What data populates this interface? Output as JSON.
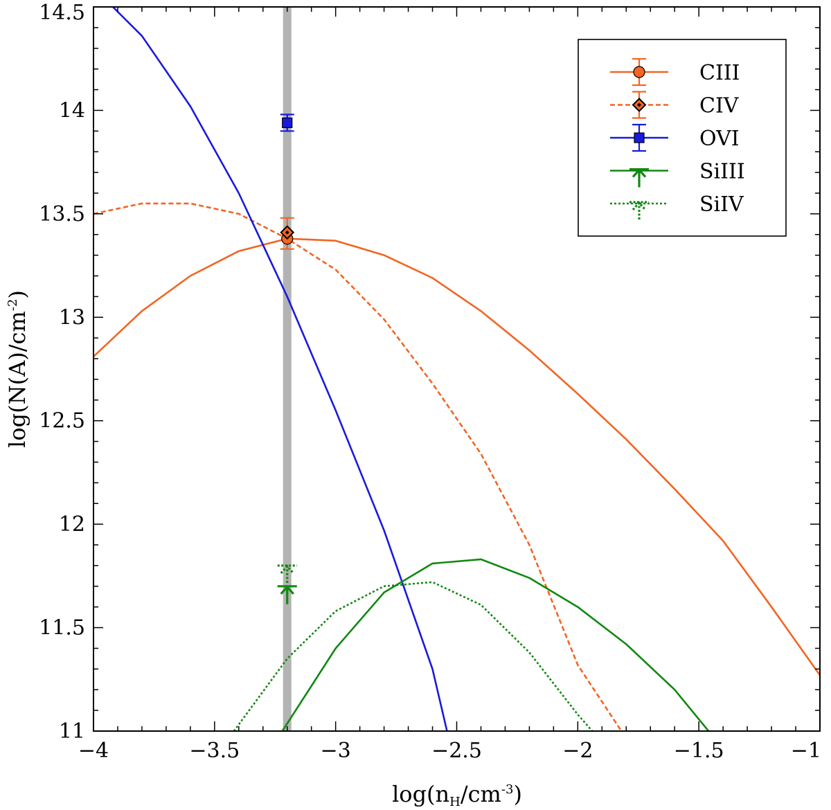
{
  "chart_data": {
    "type": "line",
    "title": "",
    "xlabel": "log(n_H/cm^-3)",
    "ylabel": "log(N(A)/cm^-2)",
    "xlim": [
      -4,
      -1
    ],
    "ylim": [
      11,
      14.5
    ],
    "grid": false,
    "legend_position": "top-right",
    "x_ticks": [
      {
        "value": -4,
        "label": "−4"
      },
      {
        "value": -3.5,
        "label": "−3.5"
      },
      {
        "value": -3,
        "label": "−3"
      },
      {
        "value": -2.5,
        "label": "−2.5"
      },
      {
        "value": -2,
        "label": "−2"
      },
      {
        "value": -1.5,
        "label": "−1.5"
      },
      {
        "value": -1,
        "label": "−1"
      }
    ],
    "y_ticks": [
      {
        "value": 11,
        "label": "11"
      },
      {
        "value": 11.5,
        "label": "11.5"
      },
      {
        "value": 12,
        "label": "12"
      },
      {
        "value": 12.5,
        "label": "12.5"
      },
      {
        "value": 13,
        "label": "13"
      },
      {
        "value": 13.5,
        "label": "13.5"
      },
      {
        "value": 14,
        "label": "14"
      },
      {
        "value": 14.5,
        "label": "14.5"
      }
    ],
    "best_fit_density": -3.2,
    "series": [
      {
        "name": "CIII",
        "color": "#f26522",
        "dash": "solid",
        "x": [
          -4.0,
          -3.8,
          -3.6,
          -3.4,
          -3.2,
          -3.0,
          -2.8,
          -2.6,
          -2.4,
          -2.2,
          -2.0,
          -1.8,
          -1.6,
          -1.4,
          -1.2,
          -1.0
        ],
        "y": [
          12.81,
          13.03,
          13.2,
          13.32,
          13.38,
          13.37,
          13.3,
          13.19,
          13.03,
          12.84,
          12.63,
          12.41,
          12.17,
          11.92,
          11.6,
          11.27
        ]
      },
      {
        "name": "CIV",
        "color": "#f26522",
        "dash": "dashed",
        "x": [
          -4.0,
          -3.8,
          -3.6,
          -3.4,
          -3.2,
          -3.0,
          -2.8,
          -2.6,
          -2.4,
          -2.2,
          -2.0,
          -1.82
        ],
        "y": [
          13.5,
          13.55,
          13.55,
          13.5,
          13.38,
          13.23,
          12.99,
          12.68,
          12.34,
          11.9,
          11.32,
          11.0
        ]
      },
      {
        "name": "OVI",
        "color": "#1919e0",
        "dash": "solid",
        "x": [
          -3.92,
          -3.8,
          -3.6,
          -3.4,
          -3.2,
          -3.0,
          -2.8,
          -2.6,
          -2.54
        ],
        "y": [
          14.5,
          14.36,
          14.02,
          13.6,
          13.1,
          12.55,
          11.97,
          11.3,
          11.0
        ]
      },
      {
        "name": "SiIII",
        "color": "#118811",
        "dash": "solid",
        "x": [
          -3.22,
          -3.0,
          -2.8,
          -2.6,
          -2.4,
          -2.2,
          -2.0,
          -1.8,
          -1.6,
          -1.46
        ],
        "y": [
          11.0,
          11.4,
          11.67,
          11.81,
          11.83,
          11.74,
          11.6,
          11.42,
          11.2,
          11.0
        ]
      },
      {
        "name": "SiIV",
        "color": "#118811",
        "dash": "dotted",
        "x": [
          -3.42,
          -3.2,
          -3.0,
          -2.8,
          -2.6,
          -2.4,
          -2.2,
          -2.0,
          -1.94
        ],
        "y": [
          11.0,
          11.35,
          11.58,
          11.7,
          11.72,
          11.61,
          11.38,
          11.08,
          11.0
        ]
      }
    ],
    "measurements": [
      {
        "name": "CIII",
        "x": -3.2,
        "y": 13.38,
        "err_low": 0.05,
        "err_high": 0.1,
        "marker": "circle",
        "limit": false
      },
      {
        "name": "CIV",
        "x": -3.2,
        "y": 13.41,
        "err_low": 0.0,
        "err_high": 0.0,
        "marker": "diamond",
        "limit": false
      },
      {
        "name": "OVI",
        "x": -3.2,
        "y": 13.94,
        "err_low": 0.04,
        "err_high": 0.04,
        "marker": "square",
        "limit": false
      },
      {
        "name": "SiIII",
        "x": -3.2,
        "y": 11.7,
        "marker": "upper-limit",
        "limit": true
      },
      {
        "name": "SiIV",
        "x": -3.2,
        "y": 11.8,
        "marker": "upper-limit",
        "limit": true
      }
    ],
    "legend": [
      {
        "label": "CIII",
        "color": "#f26522",
        "dash": "solid",
        "marker": "circle"
      },
      {
        "label": "CIV",
        "color": "#f26522",
        "dash": "dashed",
        "marker": "diamond"
      },
      {
        "label": "OVI",
        "color": "#1919e0",
        "dash": "solid",
        "marker": "square"
      },
      {
        "label": "SiIII",
        "color": "#118811",
        "dash": "solid",
        "marker": "upper-limit"
      },
      {
        "label": "SiIV",
        "color": "#118811",
        "dash": "dotted",
        "marker": "upper-limit"
      }
    ]
  },
  "axis_titles": {
    "x_main": "log(n",
    "x_sub": "H",
    "x_mid": "/cm",
    "x_sup": "-3",
    "x_end": ")",
    "y_main": "log(N(A)/cm",
    "y_sup": "-2",
    "y_end": ")"
  }
}
